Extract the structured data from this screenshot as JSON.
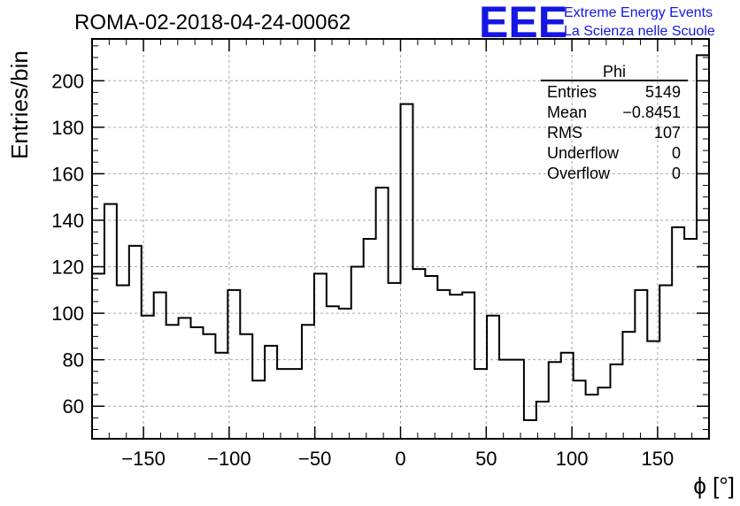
{
  "title": "ROMA-02-2018-04-24-00062",
  "logo": {
    "mark": "EEE",
    "line1": "Extreme Energy Events",
    "line2": "La Scienza nelle Scuole",
    "color": "#1515e6"
  },
  "stats_box": {
    "name": "Phi",
    "rows": [
      {
        "label": "Entries",
        "value": "5149"
      },
      {
        "label": "Mean",
        "value": "−0.8451"
      },
      {
        "label": "RMS",
        "value": "107"
      },
      {
        "label": "Underflow",
        "value": "0"
      },
      {
        "label": "Overflow",
        "value": "0"
      }
    ]
  },
  "chart_data": {
    "type": "histogram",
    "title": "ROMA-02-2018-04-24-00062",
    "xlabel": "ϕ [°]",
    "ylabel": "Entries/bin",
    "xlim": [
      -180,
      180
    ],
    "ylim": [
      46,
      218
    ],
    "bin_width": 7.2,
    "x_ticks": [
      -150,
      -100,
      -50,
      0,
      50,
      100,
      150
    ],
    "x_tick_labels": [
      "−150",
      "−100",
      "−50",
      "0",
      "50",
      "100",
      "150"
    ],
    "y_ticks": [
      60,
      80,
      100,
      120,
      140,
      160,
      180,
      200
    ],
    "y_tick_labels": [
      "60",
      "80",
      "100",
      "120",
      "140",
      "160",
      "180",
      "200"
    ],
    "grid": true,
    "line_color": "#000000",
    "values": [
      117,
      147,
      112,
      129,
      99,
      109,
      95,
      98,
      94,
      91,
      83,
      110,
      91,
      71,
      86,
      76,
      76,
      95,
      117,
      103,
      102,
      120,
      132,
      154,
      113,
      190,
      119,
      116,
      110,
      108,
      109,
      76,
      99,
      80,
      80,
      54,
      62,
      79,
      83,
      71,
      65,
      68,
      78,
      92,
      110,
      88,
      112,
      137,
      132,
      211
    ]
  }
}
